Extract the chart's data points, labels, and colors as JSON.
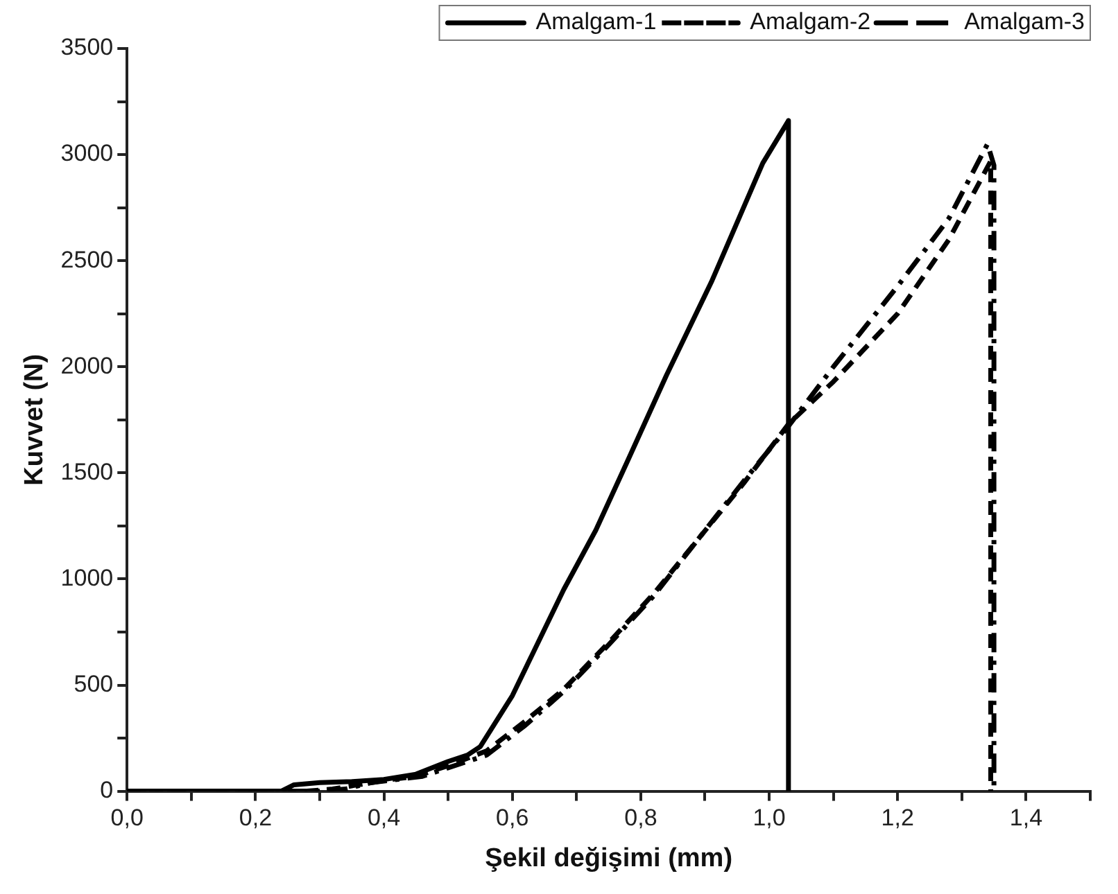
{
  "chart_data": {
    "type": "line",
    "xlabel": "Şekil değişimi (mm)",
    "ylabel": "Kuvvet (N)",
    "xlim": [
      0,
      1.5
    ],
    "ylim": [
      0,
      3500
    ],
    "xticks": [
      {
        "value": 0,
        "label": "0,0"
      },
      {
        "value": 0.1,
        "label": null
      },
      {
        "value": 0.2,
        "label": "0,2"
      },
      {
        "value": 0.3,
        "label": null
      },
      {
        "value": 0.4,
        "label": "0,4"
      },
      {
        "value": 0.5,
        "label": null
      },
      {
        "value": 0.6,
        "label": "0,6"
      },
      {
        "value": 0.7,
        "label": null
      },
      {
        "value": 0.8,
        "label": "0,8"
      },
      {
        "value": 0.9,
        "label": null
      },
      {
        "value": 1.0,
        "label": "1,0"
      },
      {
        "value": 1.1,
        "label": null
      },
      {
        "value": 1.2,
        "label": "1,2"
      },
      {
        "value": 1.3,
        "label": null
      },
      {
        "value": 1.4,
        "label": "1,4"
      },
      {
        "value": 1.5,
        "label": null
      }
    ],
    "yticks": [
      0,
      {
        "value": 250,
        "label": null
      },
      500,
      {
        "value": 750,
        "label": null
      },
      1000,
      {
        "value": 1250,
        "label": null
      },
      1500,
      {
        "value": 1750,
        "label": null
      },
      2000,
      {
        "value": 2250,
        "label": null
      },
      2500,
      {
        "value": 2750,
        "label": null
      },
      3000,
      {
        "value": 3250,
        "label": null
      },
      3500
    ],
    "grid": false,
    "legend": "top right",
    "marker": "none",
    "series": [
      {
        "name": "Amalgam-1",
        "color": "#000000",
        "line_style": "solid",
        "x": [
          0,
          0.24,
          0.26,
          0.3,
          0.35,
          0.4,
          0.45,
          0.5,
          0.53,
          0.55,
          0.6,
          0.64,
          0.68,
          0.73,
          0.78,
          0.84,
          0.91,
          0.96,
          0.99,
          1.03,
          1.03
        ],
        "values": [
          0,
          0,
          30,
          40,
          45,
          55,
          80,
          140,
          170,
          210,
          450,
          700,
          950,
          1230,
          1560,
          1960,
          2400,
          2750,
          2960,
          3160,
          0
        ]
      },
      {
        "name": "Amalgam-2",
        "color": "#000000",
        "line_style": "dashed",
        "x": [
          0,
          0.28,
          0.32,
          0.36,
          0.4,
          0.45,
          0.5,
          0.56,
          0.62,
          0.68,
          0.75,
          0.82,
          0.89,
          0.96,
          1.03,
          1.1,
          1.2,
          1.28,
          1.345,
          1.345
        ],
        "values": [
          0,
          0,
          10,
          30,
          50,
          70,
          120,
          190,
          330,
          480,
          700,
          930,
          1190,
          1450,
          1730,
          1930,
          2250,
          2600,
          2970,
          0
        ]
      },
      {
        "name": "Amalgam-3",
        "color": "#000000",
        "line_style": "dashdot",
        "x": [
          0,
          0.3,
          0.34,
          0.38,
          0.42,
          0.46,
          0.5,
          0.56,
          0.62,
          0.68,
          0.75,
          0.82,
          0.89,
          0.96,
          1.03,
          1.1,
          1.2,
          1.28,
          1.34,
          1.35,
          1.35
        ],
        "values": [
          0,
          0,
          10,
          40,
          55,
          70,
          110,
          170,
          310,
          470,
          690,
          920,
          1190,
          1460,
          1720,
          2000,
          2380,
          2700,
          3050,
          2950,
          0
        ]
      }
    ]
  }
}
